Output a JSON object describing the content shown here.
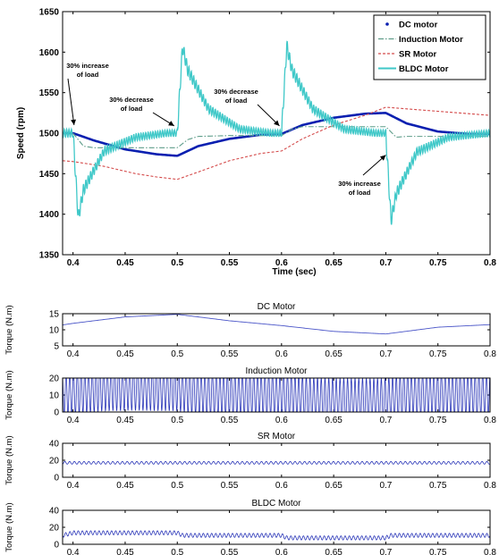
{
  "chart_data": [
    {
      "type": "line",
      "xlabel": "Time (sec)",
      "ylabel": "Speed (rpm)",
      "xlim": [
        0.39,
        0.8
      ],
      "ylim": [
        1350,
        1650
      ],
      "xticks": [
        "0.4",
        "0.45",
        "0.5",
        "0.55",
        "0.6",
        "0.65",
        "0.7",
        "0.75",
        "0.8"
      ],
      "yticks": [
        "1350",
        "1400",
        "1450",
        "1500",
        "1550",
        "1600",
        "1650"
      ],
      "legend_position": "top-right",
      "series": [
        {
          "name": "DC motor",
          "color": "#0a1fb0",
          "style": "solid-thick",
          "x": [
            0.39,
            0.4,
            0.42,
            0.45,
            0.48,
            0.5,
            0.52,
            0.55,
            0.58,
            0.6,
            0.62,
            0.65,
            0.68,
            0.7,
            0.72,
            0.75,
            0.78,
            0.8
          ],
          "y": [
            1500,
            1500,
            1491,
            1480,
            1474,
            1472,
            1484,
            1493,
            1498,
            1499,
            1510,
            1519,
            1524,
            1525,
            1512,
            1502,
            1499,
            1499
          ]
        },
        {
          "name": "Induction Motor",
          "color": "#5f9d8a",
          "style": "dash-dot",
          "x": [
            0.39,
            0.4,
            0.41,
            0.42,
            0.45,
            0.48,
            0.5,
            0.51,
            0.52,
            0.55,
            0.58,
            0.6,
            0.61,
            0.62,
            0.65,
            0.68,
            0.7,
            0.71,
            0.72,
            0.75,
            0.78,
            0.8
          ],
          "y": [
            1500,
            1500,
            1484,
            1482,
            1482,
            1482,
            1482,
            1492,
            1496,
            1497,
            1497,
            1497,
            1505,
            1508,
            1508,
            1508,
            1508,
            1495,
            1496,
            1496,
            1496,
            1496
          ]
        },
        {
          "name": "SR Motor",
          "color": "#d44a4a",
          "style": "dashed",
          "x": [
            0.39,
            0.4,
            0.43,
            0.46,
            0.48,
            0.5,
            0.52,
            0.55,
            0.58,
            0.6,
            0.62,
            0.65,
            0.68,
            0.7,
            0.72,
            0.75,
            0.78,
            0.8
          ],
          "y": [
            1466,
            1465,
            1459,
            1450,
            1446,
            1443,
            1452,
            1466,
            1475,
            1478,
            1493,
            1510,
            1522,
            1532,
            1530,
            1527,
            1524,
            1522
          ]
        },
        {
          "name": "BLDC Motor",
          "color": "#3fc8c8",
          "style": "solid-oscillating",
          "x": [
            0.39,
            0.4,
            0.405,
            0.41,
            0.43,
            0.46,
            0.49,
            0.5,
            0.505,
            0.51,
            0.53,
            0.56,
            0.59,
            0.6,
            0.605,
            0.61,
            0.63,
            0.66,
            0.69,
            0.7,
            0.705,
            0.71,
            0.73,
            0.76,
            0.8
          ],
          "y": [
            1500,
            1500,
            1395,
            1430,
            1478,
            1495,
            1500,
            1500,
            1607,
            1578,
            1530,
            1505,
            1500,
            1500,
            1608,
            1578,
            1530,
            1505,
            1500,
            1500,
            1392,
            1425,
            1477,
            1495,
            1500
          ]
        }
      ],
      "annotations": [
        {
          "text": "30% increase of load",
          "x": 0.401,
          "y": 1510
        },
        {
          "text": "30% decrease of load",
          "x": 0.497,
          "y": 1509
        },
        {
          "text": "30% decrease of load",
          "x": 0.598,
          "y": 1509
        },
        {
          "text": "30% increase of load",
          "x": 0.7,
          "y": 1473
        }
      ]
    },
    {
      "type": "line",
      "title": "DC Motor",
      "ylabel": "Torque (N.m)",
      "xlim": [
        0.39,
        0.8
      ],
      "ylim": [
        5,
        15
      ],
      "xticks": [
        "0.4",
        "0.45",
        "0.5",
        "0.55",
        "0.6",
        "0.65",
        "0.7",
        "0.75",
        "0.8"
      ],
      "yticks": [
        "5",
        "10",
        "15"
      ],
      "series": [
        {
          "color": "#4a55c8",
          "x": [
            0.39,
            0.4,
            0.45,
            0.5,
            0.55,
            0.6,
            0.65,
            0.7,
            0.75,
            0.8
          ],
          "y": [
            11.5,
            12.0,
            14.0,
            14.8,
            12.8,
            11.3,
            9.5,
            8.7,
            10.8,
            11.6
          ]
        }
      ]
    },
    {
      "type": "line",
      "title": "Induction Motor",
      "ylabel": "Torque (N.m)",
      "xlim": [
        0.39,
        0.8
      ],
      "ylim": [
        0,
        20
      ],
      "xticks": [
        "0.4",
        "0.45",
        "0.5",
        "0.55",
        "0.6",
        "0.65",
        "0.7",
        "0.75",
        "0.8"
      ],
      "yticks": [
        "0",
        "10",
        "20"
      ],
      "series": [
        {
          "color": "#2a36b8",
          "style": "oscillating",
          "x": [
            0.39,
            0.4,
            0.43,
            0.46,
            0.5,
            0.52,
            0.55,
            0.6,
            0.63,
            0.65,
            0.7,
            0.72,
            0.75,
            0.8
          ],
          "y": [
            10.5,
            11.0,
            13.5,
            13.8,
            13.5,
            11.0,
            10.5,
            10.5,
            7.5,
            7.0,
            7.0,
            10.5,
            10.5,
            10.5
          ]
        }
      ]
    },
    {
      "type": "line",
      "title": "SR Motor",
      "ylabel": "Torque (N.m)",
      "xlim": [
        0.39,
        0.8
      ],
      "ylim": [
        0,
        40
      ],
      "xticks": [
        "0.4",
        "0.45",
        "0.5",
        "0.55",
        "0.6",
        "0.65",
        "0.7",
        "0.75",
        "0.8"
      ],
      "yticks": [
        "0",
        "20",
        "40"
      ],
      "series": [
        {
          "color": "#2a36b8",
          "style": "oscillating",
          "x": [
            0.39,
            0.8
          ],
          "y": [
            17,
            17
          ],
          "amplitude": 13
        }
      ]
    },
    {
      "type": "line",
      "title": "BLDC Motor",
      "ylabel": "Torque (N.m)",
      "xlim": [
        0.39,
        0.8
      ],
      "ylim": [
        0,
        40
      ],
      "xticks": [
        "0.4",
        "0.45",
        "0.5",
        "0.55",
        "0.6",
        "0.65",
        "0.7",
        "0.75",
        "0.8"
      ],
      "yticks": [
        "0",
        "20",
        "40"
      ],
      "series": [
        {
          "color": "#2a36b8",
          "style": "oscillating",
          "x": [
            0.39,
            0.4,
            0.5,
            0.505,
            0.6,
            0.605,
            0.7,
            0.705,
            0.8
          ],
          "y": [
            10.5,
            13.5,
            13.5,
            10.5,
            10.5,
            7.5,
            7.5,
            10.5,
            10.5
          ]
        }
      ]
    }
  ]
}
